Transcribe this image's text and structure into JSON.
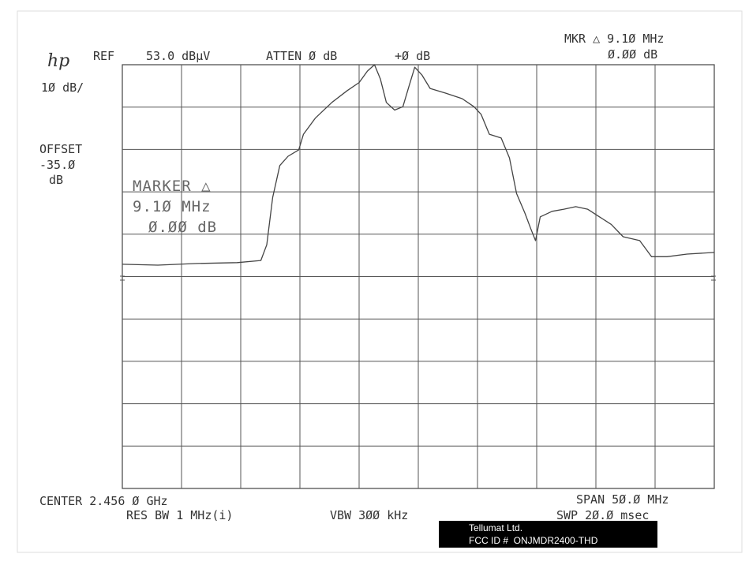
{
  "chart_data": {
    "type": "line",
    "logo": "hp",
    "ref": "REF",
    "ref_level": "53.0 dBµV",
    "atten": "ATTEN Ø dB",
    "offset_gain": "+Ø dB",
    "marker_readout": {
      "label": "MKR △ 9.1Ø MHz",
      "level": "Ø.ØØ dB"
    },
    "scale": "1Ø dB/",
    "offset": [
      "OFFSET",
      "-35.Ø",
      "dB"
    ],
    "marker_box": [
      "MARKER △",
      "9.1Ø MHz",
      "Ø.ØØ dB"
    ],
    "center": "CENTER 2.456 Ø GHz",
    "span": "SPAN 5Ø.Ø MHz",
    "res_bw": "RES BW 1 MHz(i)",
    "vbw": "VBW 3ØØ kHz",
    "sweep": "SWP 2Ø.Ø msec",
    "x": [
      2431,
      2434,
      2437.3,
      2440.7,
      2442.7,
      2443.2,
      2443.7,
      2444.3,
      2445,
      2445.9,
      2446.3,
      2447.3,
      2448.7,
      2450,
      2451,
      2451.7,
      2452.3,
      2452.8,
      2453.3,
      2454,
      2454.7,
      2455.2,
      2455.7,
      2456.3,
      2457,
      2458.3,
      2459.7,
      2460.7,
      2461.3,
      2462,
      2463,
      2463.7,
      2464.3,
      2465,
      2465.5,
      2465.9,
      2466.3,
      2467.3,
      2468.3,
      2469.3,
      2470.3,
      2471.3,
      2472.3,
      2473.3,
      2474.7,
      2475.7,
      2477,
      2478.7,
      2481
    ],
    "values": [
      5.9,
      5.7,
      6.1,
      6.3,
      6.8,
      10.5,
      21.7,
      29.2,
      31.4,
      32.9,
      36.6,
      40.4,
      44.1,
      46.9,
      48.8,
      51.5,
      53,
      49.6,
      44.1,
      42.3,
      43.1,
      47.8,
      52.4,
      50.6,
      47.4,
      46.3,
      45,
      43.1,
      41.3,
      36.6,
      35.7,
      31,
      22.6,
      18,
      14.3,
      11.5,
      17.1,
      18.4,
      18.9,
      19.5,
      18.9,
      17.1,
      15.3,
      12.4,
      11.5,
      7.7,
      7.7,
      8.3,
      8.7
    ],
    "color": "#444444",
    "xlim": [
      2431,
      2481
    ],
    "ylim": [
      -47,
      53
    ],
    "grid": true
  },
  "footer": {
    "company": "Tellumat Ltd.",
    "fcc_id": "FCC ID #  ONJMDR2400-THD"
  }
}
